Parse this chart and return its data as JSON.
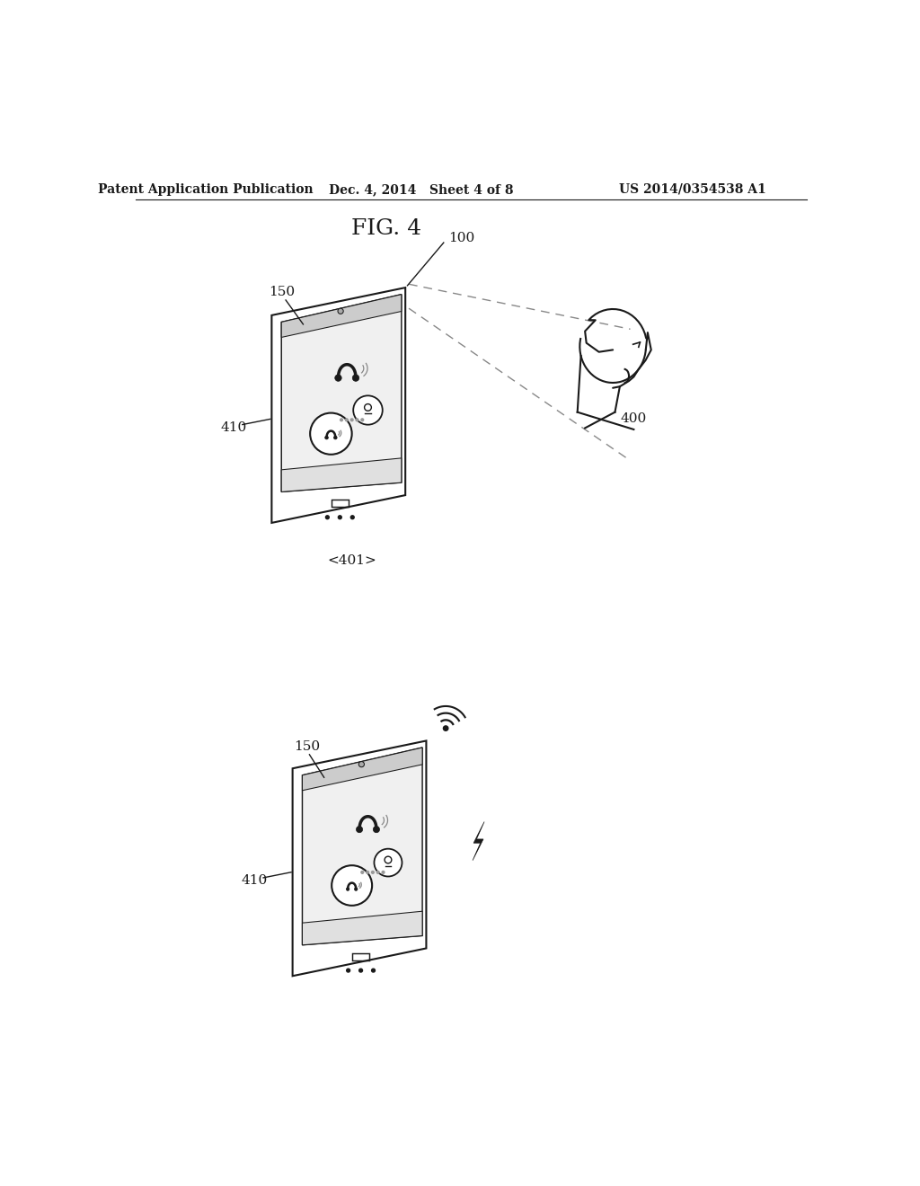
{
  "title": "FIG. 4",
  "header_left": "Patent Application Publication",
  "header_center": "Dec. 4, 2014   Sheet 4 of 8",
  "header_right": "US 2014/0354538 A1",
  "background_color": "#ffffff",
  "label_100": "100",
  "label_150_top": "150",
  "label_150_bot": "150",
  "label_400": "400",
  "label_410_top": "410",
  "label_410_bot": "410",
  "label_401": "<401>"
}
